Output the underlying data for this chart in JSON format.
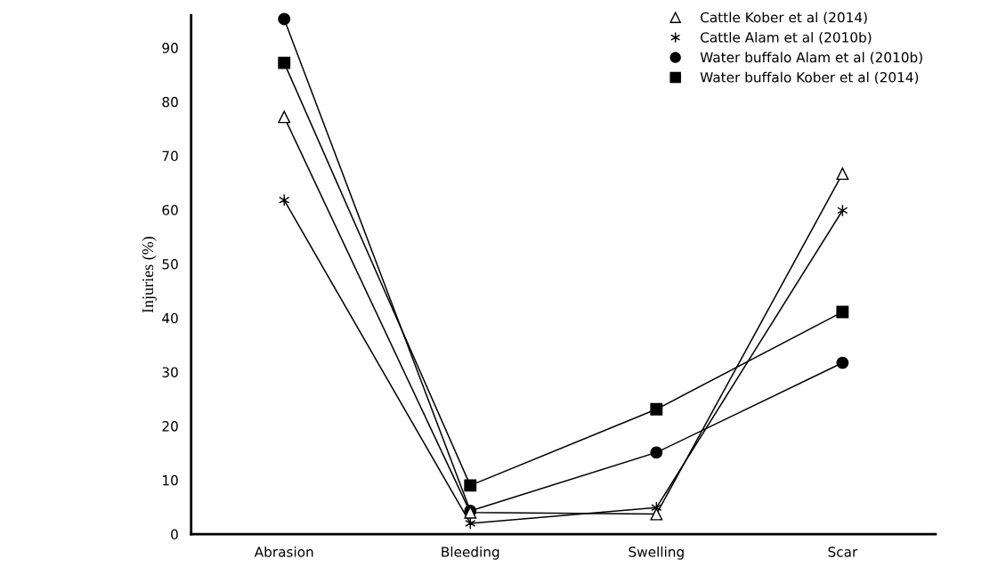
{
  "chart_data": {
    "type": "line",
    "ylabel": "Injuries (%)",
    "categories": [
      "Abrasion",
      "Bleeding",
      "Swelling",
      "Scar"
    ],
    "series": [
      {
        "name": "Cattle Kober et al (2014)",
        "color": "#000000",
        "marker": "triangle",
        "values": [
          77.2,
          4.0,
          3.7,
          66.7
        ]
      },
      {
        "name": "Cattle Alam et al (2010b)",
        "color": "#000000",
        "marker": "cross",
        "values": [
          61.8,
          2.0,
          4.9,
          59.9
        ]
      },
      {
        "name": "Water buffalo Alam et al (2010b)",
        "color": "#000000",
        "marker": "circle",
        "values": [
          95.3,
          4.3,
          15.1,
          31.7
        ]
      },
      {
        "name": "Water buffalo Kober et al (2014)",
        "color": "#000000",
        "marker": "square",
        "values": [
          87.2,
          9.0,
          23.1,
          41.1
        ]
      }
    ],
    "ylim": [
      0,
      96
    ],
    "yticks": [
      0,
      10,
      20,
      30,
      40,
      50,
      60,
      70,
      80,
      90
    ],
    "grid": false,
    "legend": "top right",
    "line_style": "solid"
  }
}
